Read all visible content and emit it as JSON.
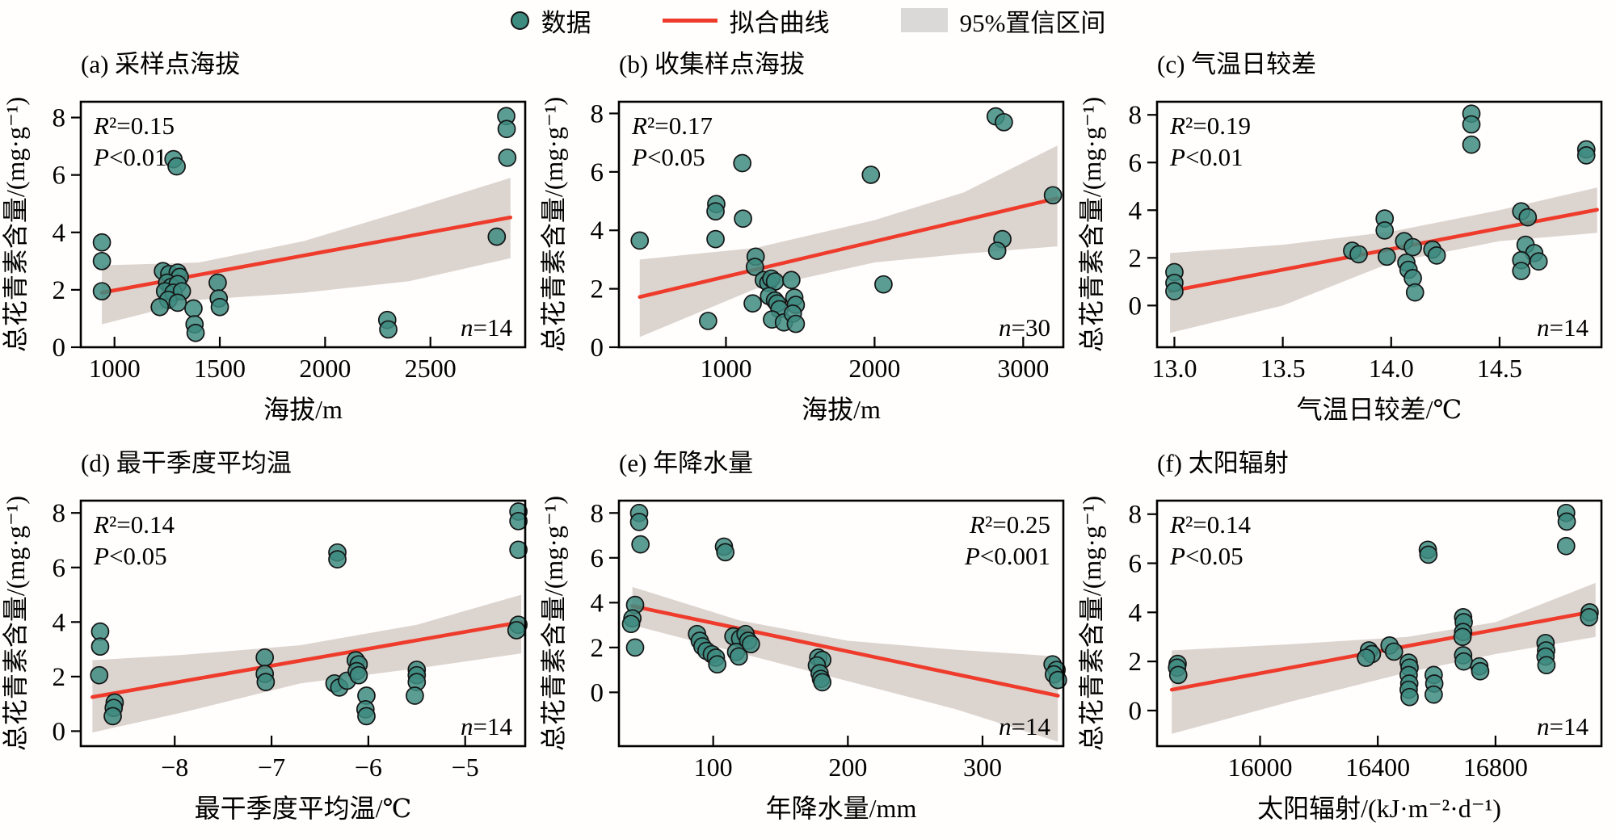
{
  "legend": {
    "data_label": "数据",
    "fit_label": "拟合曲线",
    "ci_label": "95%置信区间"
  },
  "colors": {
    "point_fill": "#3E8B80",
    "point_stroke": "#141414",
    "fit_line": "#EE3B2B",
    "ci_band": "#D9D0CB",
    "axis": "#000000"
  },
  "chart_data": [
    {
      "type": "scatter",
      "title": "(a) 采样点海拔",
      "xlabel": "海拔/m",
      "ylabel": "总花青素含量/(mg·g⁻¹)",
      "r2_var": "R",
      "r2_rest": "²=0.15",
      "p_var": "P",
      "p_rest": "<0.01",
      "n_var": "n",
      "n_rest": "=14",
      "stats_corner": "left",
      "xlim": [
        840,
        2950
      ],
      "xtick_vals": [
        1000,
        1500,
        2000,
        2500
      ],
      "xticks": [
        "1000",
        "1500",
        "2000",
        "2500"
      ],
      "ylim": [
        0,
        8.55
      ],
      "yticks": [
        0,
        2,
        4,
        6,
        8
      ],
      "fit": {
        "x": [
          940,
          2880
        ],
        "y": [
          1.9,
          4.52
        ]
      },
      "ci": {
        "x": [
          940,
          1400,
          1900,
          2400,
          2880
        ],
        "upper": [
          2.85,
          2.95,
          3.7,
          4.8,
          5.9
        ],
        "lower": [
          0.8,
          1.65,
          1.9,
          2.3,
          3.1
        ]
      },
      "points": [
        [
          940,
          3.65
        ],
        [
          940,
          3.0
        ],
        [
          940,
          1.95
        ],
        [
          1280,
          6.55
        ],
        [
          1295,
          6.3
        ],
        [
          1230,
          2.65
        ],
        [
          1260,
          2.55
        ],
        [
          1300,
          2.6
        ],
        [
          1310,
          2.45
        ],
        [
          1250,
          2.25
        ],
        [
          1270,
          2.1
        ],
        [
          1300,
          2.2
        ],
        [
          1240,
          1.95
        ],
        [
          1280,
          1.9
        ],
        [
          1320,
          1.95
        ],
        [
          1255,
          1.65
        ],
        [
          1300,
          1.55
        ],
        [
          1215,
          1.4
        ],
        [
          1375,
          1.35
        ],
        [
          1380,
          0.8
        ],
        [
          1385,
          0.5
        ],
        [
          1490,
          2.25
        ],
        [
          1495,
          1.7
        ],
        [
          1500,
          1.4
        ],
        [
          2295,
          0.95
        ],
        [
          2300,
          0.62
        ],
        [
          2815,
          3.85
        ],
        [
          2860,
          8.05
        ],
        [
          2862,
          7.6
        ],
        [
          2865,
          6.6
        ]
      ]
    },
    {
      "type": "scatter",
      "title": "(b) 收集样点海拔",
      "xlabel": "海拔/m",
      "ylabel": "总花青素含量/(mg·g⁻¹)",
      "r2_var": "R",
      "r2_rest": "²=0.17",
      "p_var": "P",
      "p_rest": "<0.05",
      "n_var": "n",
      "n_rest": "=30",
      "stats_corner": "left",
      "xlim": [
        280,
        3270
      ],
      "xtick_vals": [
        1000,
        2000,
        3000
      ],
      "xticks": [
        "1000",
        "2000",
        "3000"
      ],
      "ylim": [
        0,
        8.4
      ],
      "yticks": [
        0,
        2,
        4,
        6,
        8
      ],
      "fit": {
        "x": [
          420,
          3230
        ],
        "y": [
          1.72,
          5.1
        ]
      },
      "ci": {
        "x": [
          420,
          1200,
          2000,
          2600,
          3230
        ],
        "upper": [
          3.0,
          3.4,
          4.35,
          5.3,
          6.9
        ],
        "lower": [
          0.35,
          2.0,
          2.9,
          3.2,
          3.45
        ]
      },
      "points": [
        [
          420,
          3.65
        ],
        [
          880,
          0.9
        ],
        [
          935,
          4.9
        ],
        [
          930,
          4.65
        ],
        [
          930,
          3.7
        ],
        [
          1110,
          6.3
        ],
        [
          1115,
          4.4
        ],
        [
          1200,
          3.1
        ],
        [
          1195,
          2.75
        ],
        [
          1180,
          1.5
        ],
        [
          1255,
          2.3
        ],
        [
          1285,
          2.2
        ],
        [
          1305,
          2.35
        ],
        [
          1330,
          2.25
        ],
        [
          1290,
          1.75
        ],
        [
          1330,
          1.6
        ],
        [
          1345,
          1.5
        ],
        [
          1360,
          1.3
        ],
        [
          1310,
          0.95
        ],
        [
          1390,
          0.85
        ],
        [
          1440,
          2.3
        ],
        [
          1460,
          1.7
        ],
        [
          1470,
          1.45
        ],
        [
          1450,
          1.15
        ],
        [
          1470,
          0.8
        ],
        [
          1975,
          5.9
        ],
        [
          2060,
          2.15
        ],
        [
          2815,
          7.9
        ],
        [
          2870,
          7.7
        ],
        [
          2860,
          3.7
        ],
        [
          2825,
          3.3
        ],
        [
          3200,
          5.2
        ]
      ]
    },
    {
      "type": "scatter",
      "title": "(c) 气温日较差",
      "xlabel": "气温日较差/℃",
      "ylabel": "总花青素含量/(mg·g⁻¹)",
      "r2_var": "R",
      "r2_rest": "²=0.19",
      "p_var": "P",
      "p_rest": "<0.01",
      "n_var": "n",
      "n_rest": "=14",
      "stats_corner": "left",
      "xlim": [
        12.92,
        14.97
      ],
      "xtick_vals": [
        13.0,
        13.5,
        14.0,
        14.5
      ],
      "xticks": [
        "13.0",
        "13.5",
        "14.0",
        "14.5"
      ],
      "ylim": [
        -1.75,
        8.55
      ],
      "yticks": [
        0,
        2,
        4,
        6,
        8
      ],
      "fit": {
        "x": [
          12.98,
          14.95
        ],
        "y": [
          0.6,
          4.02
        ]
      },
      "ci": {
        "x": [
          12.98,
          13.5,
          14.0,
          14.5,
          14.95
        ],
        "upper": [
          2.2,
          2.55,
          3.1,
          4.0,
          4.95
        ],
        "lower": [
          -1.15,
          0.0,
          1.8,
          2.7,
          3.05
        ]
      },
      "points": [
        [
          13.0,
          1.4
        ],
        [
          13.0,
          0.95
        ],
        [
          13.0,
          0.6
        ],
        [
          13.82,
          2.3
        ],
        [
          13.85,
          2.15
        ],
        [
          13.97,
          3.65
        ],
        [
          13.97,
          3.15
        ],
        [
          13.98,
          2.05
        ],
        [
          14.06,
          2.7
        ],
        [
          14.1,
          2.45
        ],
        [
          14.07,
          1.8
        ],
        [
          14.08,
          1.5
        ],
        [
          14.1,
          1.15
        ],
        [
          14.11,
          0.55
        ],
        [
          14.19,
          2.35
        ],
        [
          14.21,
          2.1
        ],
        [
          14.37,
          8.05
        ],
        [
          14.37,
          7.6
        ],
        [
          14.37,
          6.75
        ],
        [
          14.6,
          3.95
        ],
        [
          14.63,
          3.7
        ],
        [
          14.62,
          2.55
        ],
        [
          14.66,
          2.2
        ],
        [
          14.6,
          1.9
        ],
        [
          14.68,
          1.85
        ],
        [
          14.6,
          1.45
        ],
        [
          14.9,
          6.55
        ],
        [
          14.9,
          6.3
        ]
      ]
    },
    {
      "type": "scatter",
      "title": "(d) 最干季度平均温",
      "xlabel": "最干季度平均温/℃",
      "ylabel": "总花青素含量/(mg·g⁻¹)",
      "r2_var": "R",
      "r2_rest": "²=0.14",
      "p_var": "P",
      "p_rest": "<0.05",
      "n_var": "n",
      "n_rest": "=14",
      "stats_corner": "left",
      "xlim": [
        -8.97,
        -4.38
      ],
      "xtick_vals": [
        -8,
        -7,
        -6,
        -5
      ],
      "xticks": [
        "−8",
        "−7",
        "−6",
        "−5"
      ],
      "ylim": [
        -0.55,
        8.45
      ],
      "yticks": [
        0,
        2,
        4,
        6,
        8
      ],
      "fit": {
        "x": [
          -8.85,
          -4.42
        ],
        "y": [
          1.25,
          4.0
        ]
      },
      "ci": {
        "x": [
          -8.85,
          -7.9,
          -6.7,
          -5.5,
          -4.42
        ],
        "upper": [
          2.6,
          2.8,
          3.15,
          3.9,
          5.0
        ],
        "lower": [
          -0.05,
          0.7,
          1.75,
          2.3,
          2.85
        ]
      },
      "points": [
        [
          -8.77,
          3.65
        ],
        [
          -8.77,
          3.1
        ],
        [
          -8.78,
          2.05
        ],
        [
          -8.62,
          1.05
        ],
        [
          -8.63,
          0.85
        ],
        [
          -8.64,
          0.55
        ],
        [
          -7.07,
          2.7
        ],
        [
          -7.07,
          2.1
        ],
        [
          -7.06,
          1.8
        ],
        [
          -6.32,
          6.55
        ],
        [
          -6.32,
          6.3
        ],
        [
          -6.35,
          1.75
        ],
        [
          -6.3,
          1.6
        ],
        [
          -6.22,
          1.85
        ],
        [
          -6.13,
          2.6
        ],
        [
          -6.1,
          2.45
        ],
        [
          -6.12,
          2.2
        ],
        [
          -6.1,
          2.05
        ],
        [
          -6.02,
          1.3
        ],
        [
          -6.03,
          0.8
        ],
        [
          -6.02,
          0.55
        ],
        [
          -5.5,
          2.25
        ],
        [
          -5.5,
          2.05
        ],
        [
          -5.5,
          1.8
        ],
        [
          -5.52,
          1.3
        ],
        [
          -4.45,
          8.05
        ],
        [
          -4.45,
          7.7
        ],
        [
          -4.45,
          6.65
        ],
        [
          -4.45,
          3.9
        ],
        [
          -4.47,
          3.7
        ]
      ]
    },
    {
      "type": "scatter",
      "title": "(e) 年降水量",
      "xlabel": "年降水量/mm",
      "ylabel": "总花青素含量/(mg·g⁻¹)",
      "r2_var": "R",
      "r2_rest": "²=0.25",
      "p_var": "P",
      "p_rest": "<0.001",
      "n_var": "n",
      "n_rest": "=14",
      "stats_corner": "right",
      "xlim": [
        30,
        360
      ],
      "xtick_vals": [
        100,
        200,
        300
      ],
      "xticks": [
        "100",
        "200",
        "300"
      ],
      "ylim": [
        -2.4,
        8.55
      ],
      "yticks": [
        0,
        2,
        4,
        6,
        8
      ],
      "fit": {
        "x": [
          40,
          356
        ],
        "y": [
          3.85,
          -0.15
        ]
      },
      "ci": {
        "x": [
          40,
          120,
          200,
          280,
          356
        ],
        "upper": [
          4.7,
          3.2,
          2.3,
          1.9,
          1.6
        ],
        "lower": [
          3.0,
          1.75,
          0.5,
          -0.75,
          -2.2
        ]
      },
      "points": [
        [
          45,
          8.0
        ],
        [
          45,
          7.6
        ],
        [
          46,
          6.6
        ],
        [
          42,
          3.9
        ],
        [
          40,
          3.3
        ],
        [
          39,
          3.05
        ],
        [
          42,
          2.0
        ],
        [
          108,
          6.5
        ],
        [
          109,
          6.25
        ],
        [
          88,
          2.6
        ],
        [
          90,
          2.3
        ],
        [
          92,
          2.05
        ],
        [
          95,
          1.85
        ],
        [
          99,
          1.7
        ],
        [
          102,
          1.55
        ],
        [
          103,
          1.25
        ],
        [
          115,
          2.5
        ],
        [
          120,
          2.4
        ],
        [
          124,
          2.6
        ],
        [
          126,
          2.3
        ],
        [
          128,
          2.15
        ],
        [
          117,
          1.8
        ],
        [
          119,
          1.6
        ],
        [
          178,
          1.55
        ],
        [
          181,
          1.45
        ],
        [
          177,
          1.2
        ],
        [
          179,
          0.85
        ],
        [
          180,
          0.6
        ],
        [
          181,
          0.45
        ],
        [
          352,
          1.25
        ],
        [
          355,
          1.0
        ],
        [
          353,
          0.8
        ],
        [
          356,
          0.55
        ]
      ]
    },
    {
      "type": "scatter",
      "title": "(f) 太阳辐射",
      "xlabel": "太阳辐射/(kJ·m⁻²·d⁻¹)",
      "ylabel": "总花青素含量/(mg·g⁻¹)",
      "r2_var": "R",
      "r2_rest": "²=0.14",
      "p_var": "P",
      "p_rest": "<0.05",
      "n_var": "n",
      "n_rest": "=14",
      "stats_corner": "left",
      "xlim": [
        15650,
        17160
      ],
      "xtick_vals": [
        16000,
        16400,
        16800
      ],
      "xticks": [
        "16000",
        "16400",
        "16800"
      ],
      "ylim": [
        -1.45,
        8.55
      ],
      "yticks": [
        0,
        2,
        4,
        6,
        8
      ],
      "fit": {
        "x": [
          15700,
          17140
        ],
        "y": [
          0.85,
          4.05
        ]
      },
      "ci": {
        "x": [
          15700,
          16100,
          16500,
          16800,
          17140
        ],
        "upper": [
          2.45,
          2.7,
          3.0,
          3.6,
          5.2
        ],
        "lower": [
          -0.95,
          0.35,
          1.55,
          2.3,
          3.0
        ]
      },
      "points": [
        [
          15720,
          1.9
        ],
        [
          15718,
          1.75
        ],
        [
          15722,
          1.45
        ],
        [
          16370,
          2.45
        ],
        [
          16380,
          2.3
        ],
        [
          16360,
          2.15
        ],
        [
          16440,
          2.65
        ],
        [
          16455,
          2.4
        ],
        [
          16505,
          1.95
        ],
        [
          16508,
          1.75
        ],
        [
          16505,
          1.45
        ],
        [
          16507,
          1.1
        ],
        [
          16505,
          0.85
        ],
        [
          16508,
          0.55
        ],
        [
          16570,
          6.55
        ],
        [
          16572,
          6.35
        ],
        [
          16590,
          1.45
        ],
        [
          16592,
          1.1
        ],
        [
          16590,
          0.65
        ],
        [
          16690,
          3.8
        ],
        [
          16692,
          3.6
        ],
        [
          16690,
          3.2
        ],
        [
          16688,
          3.0
        ],
        [
          16690,
          2.25
        ],
        [
          16692,
          2.0
        ],
        [
          16745,
          1.8
        ],
        [
          16748,
          1.6
        ],
        [
          16970,
          2.75
        ],
        [
          16972,
          2.45
        ],
        [
          16970,
          2.2
        ],
        [
          16973,
          1.85
        ],
        [
          17040,
          8.05
        ],
        [
          17042,
          7.7
        ],
        [
          17040,
          6.7
        ],
        [
          17120,
          4.0
        ],
        [
          17118,
          3.8
        ]
      ]
    }
  ]
}
